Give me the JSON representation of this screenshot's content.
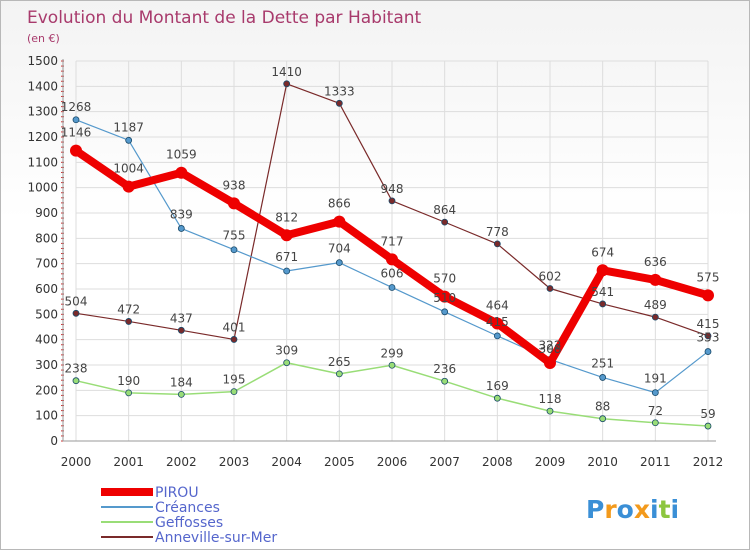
{
  "chart_data": {
    "type": "line",
    "title": "Evolution du Montant de la Dette par Habitant",
    "subtitle": "(en €)",
    "x": [
      "2000",
      "2001",
      "2002",
      "2003",
      "2004",
      "2005",
      "2006",
      "2007",
      "2008",
      "2009",
      "2010",
      "2011",
      "2012"
    ],
    "ylim": [
      0,
      1500
    ],
    "yticks": [
      0,
      100,
      200,
      300,
      400,
      500,
      600,
      700,
      800,
      900,
      1000,
      1100,
      1200,
      1300,
      1400,
      1500
    ],
    "grid": true,
    "legend_position": "bottom-left",
    "series": [
      {
        "name": "Anneville-sur-Mer",
        "color": "#7a2a2a",
        "width": 1.2,
        "marker": 3,
        "values": [
          504,
          472,
          437,
          401,
          1410,
          1333,
          948,
          864,
          778,
          602,
          541,
          489,
          415
        ]
      },
      {
        "name": "Geffosses",
        "color": "#99dd77",
        "width": 1.5,
        "marker": 3,
        "values": [
          238,
          190,
          184,
          195,
          309,
          265,
          299,
          236,
          169,
          118,
          88,
          72,
          59
        ]
      },
      {
        "name": "Créances",
        "color": "#5599cc",
        "width": 1.2,
        "marker": 3,
        "values": [
          1268,
          1187,
          839,
          755,
          671,
          704,
          606,
          510,
          415,
          322,
          251,
          191,
          353
        ]
      },
      {
        "name": "PIROU",
        "color": "#ee0000",
        "width": 8,
        "marker": 6,
        "values": [
          1146,
          1004,
          1059,
          938,
          812,
          866,
          717,
          570,
          464,
          308,
          674,
          636,
          575
        ]
      }
    ],
    "labels": {
      "Anneville-sur-Mer": [
        "504",
        "472",
        "437",
        "401",
        "1410",
        "1333",
        "948",
        "864",
        "778",
        "602",
        "541",
        "489",
        "415"
      ],
      "Geffosses": [
        "238",
        "190",
        "184",
        "195",
        "309",
        "265",
        "299",
        "236",
        "169",
        "118",
        "88",
        "72",
        "59"
      ],
      "Créances": [
        "1268",
        "1187",
        "839",
        "755",
        "671",
        "704",
        "606",
        "510",
        "415",
        "322",
        "251",
        "191",
        "353"
      ],
      "PIROU": [
        "1146",
        "1004",
        "1059",
        "938",
        "812",
        "866",
        "717",
        "570",
        "464",
        "308",
        "674",
        "636",
        "575"
      ]
    },
    "legend": [
      "PIROU",
      "Créances",
      "Geffosses",
      "Anneville-sur-Mer"
    ]
  },
  "brand": {
    "text": "Proxiti",
    "letters": [
      "P",
      "r",
      "o",
      "x",
      "i",
      "t",
      "i"
    ],
    "colors": [
      "#3a8fd6",
      "#f39a1c",
      "#3a8fd6",
      "#f39a1c",
      "#3a8fd6",
      "#8dc63f",
      "#3a8fd6"
    ]
  }
}
